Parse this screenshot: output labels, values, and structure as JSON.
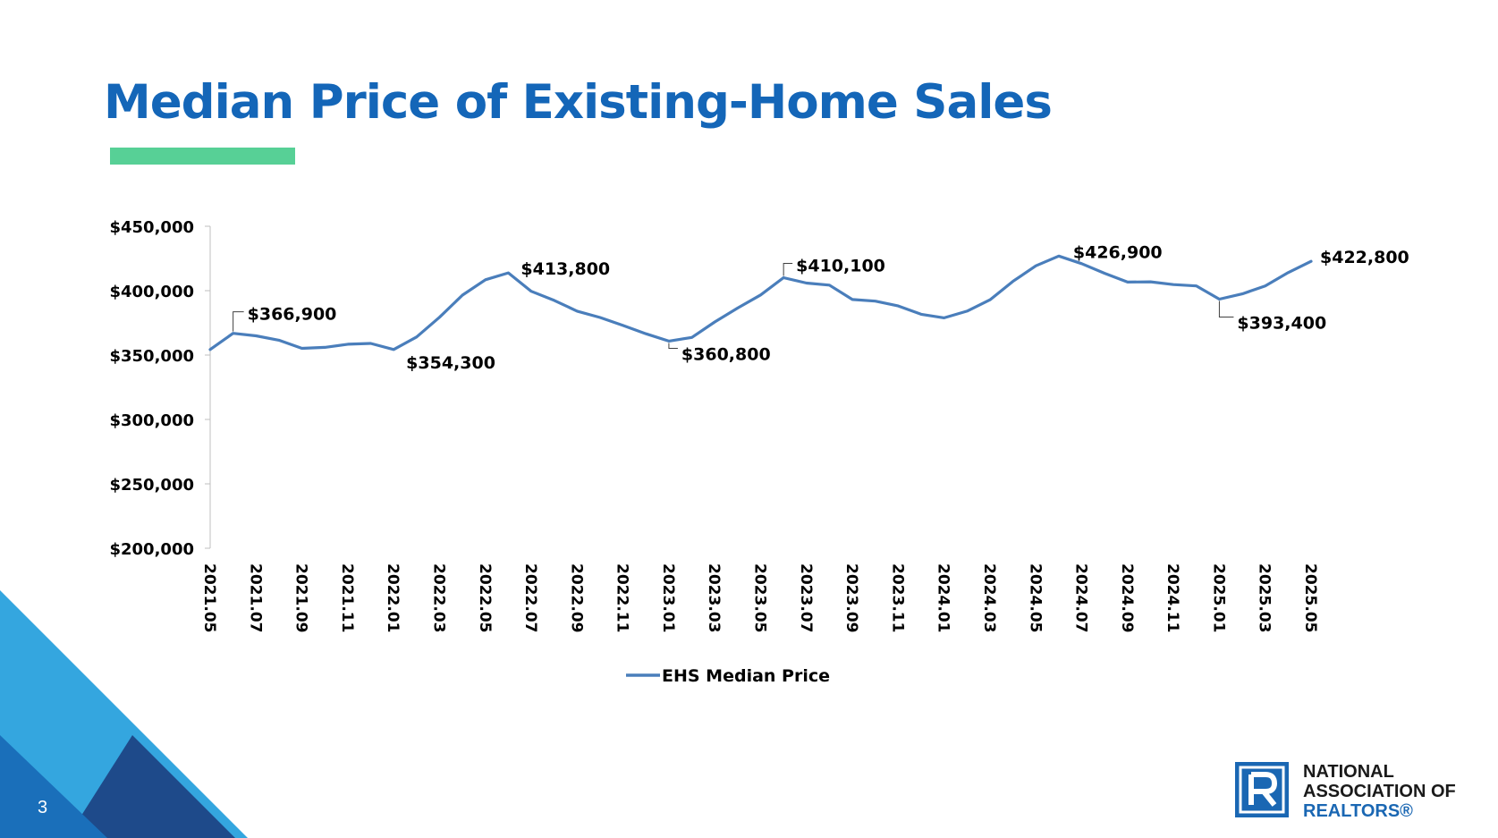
{
  "title": "Median Price of Existing-Home Sales",
  "page_number": "3",
  "logo": {
    "line1": "NATIONAL",
    "line2": "ASSOCIATION OF",
    "line3": "REALTORS®"
  },
  "colors": {
    "title": "#1466b8",
    "accent_bar": "#57d096",
    "series_line": "#4a7ebb",
    "logo_blue": "#1a67b3",
    "corner_light": "#34a6df",
    "corner_mid": "#1a6fba",
    "corner_dark": "#1e4a8a"
  },
  "chart_data": {
    "type": "line",
    "title": "",
    "xlabel": "",
    "ylabel": "",
    "ylim": [
      200000,
      450000
    ],
    "yticks": [
      450000,
      400000,
      350000,
      300000,
      250000,
      200000
    ],
    "ytick_labels": [
      "$450,000",
      "$400,000",
      "$350,000",
      "$300,000",
      "$250,000",
      "$200,000"
    ],
    "categories": [
      "2021.05",
      "2021.06",
      "2021.07",
      "2021.08",
      "2021.09",
      "2021.10",
      "2021.11",
      "2021.12",
      "2022.01",
      "2022.02",
      "2022.03",
      "2022.04",
      "2022.05",
      "2022.06",
      "2022.07",
      "2022.08",
      "2022.09",
      "2022.10",
      "2022.11",
      "2022.12",
      "2023.01",
      "2023.02",
      "2023.03",
      "2023.04",
      "2023.05",
      "2023.06",
      "2023.07",
      "2023.08",
      "2023.09",
      "2023.10",
      "2023.11",
      "2023.12",
      "2024.01",
      "2024.02",
      "2024.03",
      "2024.04",
      "2024.05",
      "2024.06",
      "2024.07",
      "2024.08",
      "2024.09",
      "2024.10",
      "2024.11",
      "2024.12",
      "2025.01",
      "2025.02",
      "2025.03",
      "2025.04",
      "2025.05"
    ],
    "xtick_labels": [
      "2021.05",
      "2021.07",
      "2021.09",
      "2021.11",
      "2022.01",
      "2022.03",
      "2022.05",
      "2022.07",
      "2022.09",
      "2022.11",
      "2023.01",
      "2023.03",
      "2023.05",
      "2023.07",
      "2023.09",
      "2023.11",
      "2024.01",
      "2024.03",
      "2024.05",
      "2024.07",
      "2024.09",
      "2024.11",
      "2025.01",
      "2025.03",
      "2025.05"
    ],
    "series": [
      {
        "name": "EHS Median Price",
        "values": [
          354300,
          366900,
          364900,
          361500,
          355200,
          356000,
          358400,
          359000,
          354300,
          364000,
          379400,
          396500,
          408500,
          413800,
          399500,
          392400,
          384100,
          379200,
          373000,
          366500,
          360800,
          363700,
          375700,
          386500,
          396700,
          410100,
          405900,
          404300,
          393100,
          391900,
          388100,
          381700,
          378900,
          384100,
          392900,
          407200,
          419300,
          426900,
          421000,
          413500,
          406700,
          406900,
          404700,
          403700,
          393400,
          397500,
          403700,
          414000,
          422800
        ]
      }
    ],
    "data_labels": [
      {
        "category": "2021.06",
        "value": 366900,
        "text": "$366,900"
      },
      {
        "category": "2022.01",
        "value": 354300,
        "text": "$354,300"
      },
      {
        "category": "2022.06",
        "value": 413800,
        "text": "$413,800"
      },
      {
        "category": "2023.01",
        "value": 360800,
        "text": "$360,800"
      },
      {
        "category": "2023.06",
        "value": 410100,
        "text": "$410,100"
      },
      {
        "category": "2024.06",
        "value": 426900,
        "text": "$426,900"
      },
      {
        "category": "2025.01",
        "value": 393400,
        "text": "$393,400"
      },
      {
        "category": "2025.05",
        "value": 422800,
        "text": "$422,800"
      }
    ],
    "legend": {
      "position": "bottom"
    },
    "grid": false
  }
}
